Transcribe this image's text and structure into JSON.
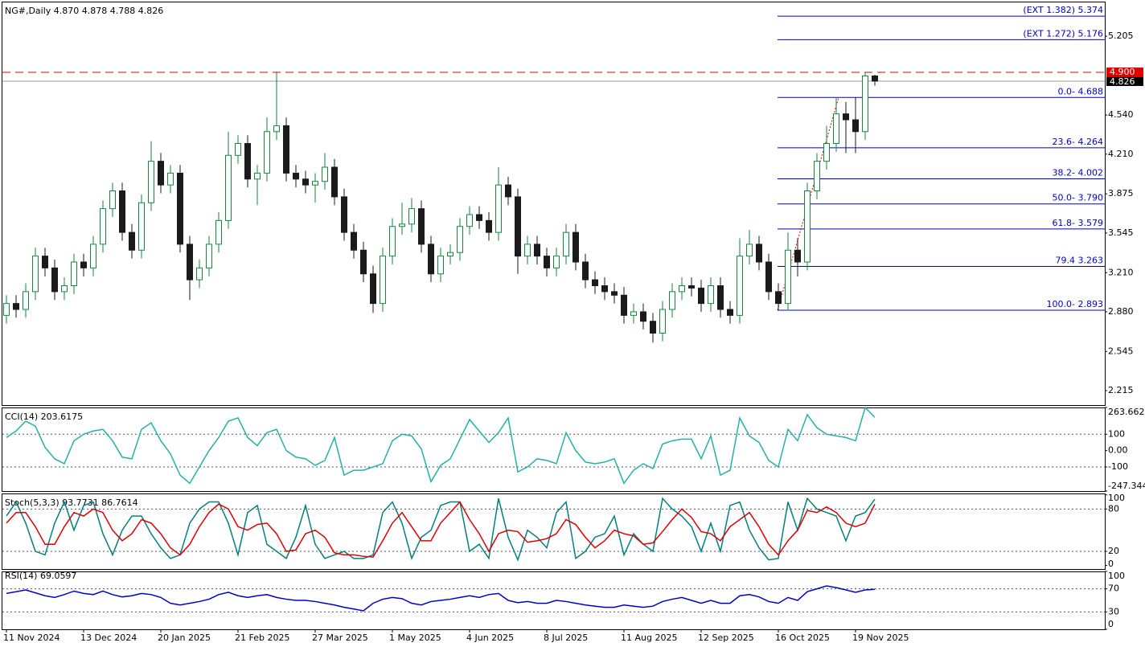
{
  "chart_data": [
    {
      "type": "candlestick",
      "title": "NG#,Daily  4.870 4.878 4.788 4.826",
      "up_color": "#0f8a3c",
      "down_color": "#1a1a1a",
      "categories": [
        "11 Nov 2024",
        null,
        null,
        null,
        null,
        null,
        null,
        null,
        "13 Dec 2024",
        null,
        null,
        null,
        null,
        null,
        null,
        null,
        "20 Jan 2025",
        null,
        null,
        null,
        null,
        null,
        null,
        null,
        "21 Feb 2025",
        null,
        null,
        null,
        null,
        null,
        null,
        null,
        "27 Mar 2025",
        null,
        null,
        null,
        null,
        null,
        null,
        null,
        "1 May 2025",
        null,
        null,
        null,
        null,
        null,
        null,
        null,
        "4 Jun 2025",
        null,
        null,
        null,
        null,
        null,
        null,
        null,
        "8 Jul 2025",
        null,
        null,
        null,
        null,
        null,
        null,
        null,
        "11 Aug 2025",
        null,
        null,
        null,
        null,
        null,
        null,
        null,
        "12 Sep 2025",
        null,
        null,
        null,
        null,
        null,
        null,
        null,
        "16 Oct 2025",
        null,
        null,
        null,
        null,
        null,
        null,
        null,
        "19 Nov 2025",
        null,
        null
      ],
      "open": [
        2.85,
        2.95,
        2.9,
        3.05,
        3.35,
        3.25,
        3.05,
        3.1,
        3.3,
        3.25,
        3.45,
        3.75,
        3.9,
        3.55,
        3.4,
        3.8,
        4.15,
        3.95,
        4.05,
        3.45,
        3.15,
        3.25,
        3.45,
        3.65,
        4.2,
        4.3,
        4.0,
        4.05,
        4.4,
        4.45,
        4.05,
        4.0,
        3.95,
        3.98,
        4.1,
        3.85,
        3.55,
        3.4,
        3.2,
        2.95,
        3.35,
        3.6,
        3.62,
        3.75,
        3.45,
        3.2,
        3.35,
        3.38,
        3.6,
        3.7,
        3.65,
        3.55,
        3.95,
        3.85,
        3.35,
        3.45,
        3.35,
        3.25,
        3.35,
        3.55,
        3.3,
        3.15,
        3.1,
        3.05,
        3.02,
        2.85,
        2.88,
        2.8,
        2.7,
        2.9,
        3.05,
        3.1,
        3.08,
        2.95,
        3.1,
        2.9,
        2.85,
        3.35,
        3.45,
        3.3,
        3.05,
        2.95,
        3.4,
        3.3,
        3.9,
        4.15,
        4.3,
        4.55,
        4.5,
        4.4,
        4.87
      ],
      "high": [
        3.02,
        3.02,
        3.12,
        3.42,
        3.42,
        3.32,
        3.17,
        3.37,
        3.37,
        3.52,
        3.82,
        3.97,
        3.97,
        3.62,
        3.87,
        4.32,
        4.22,
        4.12,
        4.12,
        3.52,
        3.32,
        3.52,
        3.72,
        4.4,
        4.37,
        4.37,
        4.12,
        4.52,
        4.9,
        4.52,
        4.12,
        4.07,
        4.05,
        4.22,
        4.17,
        3.92,
        3.62,
        3.47,
        3.27,
        3.42,
        3.67,
        3.8,
        3.84,
        3.82,
        3.52,
        3.42,
        3.45,
        3.67,
        3.77,
        3.77,
        3.72,
        4.1,
        4.02,
        3.92,
        3.52,
        3.52,
        3.42,
        3.42,
        3.62,
        3.62,
        3.37,
        3.22,
        3.17,
        3.12,
        3.09,
        2.95,
        2.95,
        2.87,
        2.97,
        3.12,
        3.17,
        3.17,
        3.15,
        3.17,
        3.17,
        2.97,
        3.5,
        3.57,
        3.52,
        3.37,
        3.12,
        3.55,
        3.5,
        3.97,
        4.22,
        4.45,
        4.69,
        4.65,
        4.69,
        4.9,
        4.878
      ],
      "low": [
        2.78,
        2.83,
        2.83,
        2.98,
        3.18,
        2.98,
        2.98,
        3.03,
        3.18,
        3.18,
        3.38,
        3.68,
        3.48,
        3.33,
        3.33,
        3.73,
        3.88,
        3.88,
        3.38,
        2.98,
        3.08,
        3.18,
        3.38,
        3.58,
        4.13,
        3.93,
        3.78,
        3.98,
        4.33,
        3.98,
        3.93,
        3.88,
        3.8,
        3.91,
        3.78,
        3.48,
        3.33,
        3.13,
        2.87,
        2.88,
        3.28,
        3.53,
        3.55,
        3.38,
        3.13,
        3.13,
        3.28,
        3.31,
        3.53,
        3.58,
        3.48,
        3.48,
        3.78,
        3.2,
        3.28,
        3.28,
        3.18,
        3.18,
        3.28,
        3.23,
        3.08,
        3.03,
        2.98,
        2.95,
        2.78,
        2.78,
        2.73,
        2.62,
        2.63,
        2.83,
        2.98,
        3.01,
        2.88,
        2.88,
        2.83,
        2.78,
        2.78,
        3.28,
        3.23,
        2.98,
        2.89,
        2.89,
        3.18,
        3.23,
        3.83,
        4.08,
        4.23,
        4.22,
        4.22,
        4.33,
        4.788
      ],
      "close": [
        2.95,
        2.9,
        3.05,
        3.35,
        3.25,
        3.05,
        3.1,
        3.3,
        3.25,
        3.45,
        3.75,
        3.9,
        3.55,
        3.4,
        3.8,
        4.15,
        3.95,
        4.05,
        3.45,
        3.15,
        3.25,
        3.45,
        3.65,
        4.2,
        4.3,
        4.0,
        4.05,
        4.4,
        4.45,
        4.05,
        4.0,
        3.95,
        3.98,
        4.1,
        3.85,
        3.55,
        3.4,
        3.2,
        2.95,
        3.35,
        3.6,
        3.62,
        3.75,
        3.45,
        3.2,
        3.35,
        3.38,
        3.6,
        3.7,
        3.65,
        3.55,
        3.95,
        3.85,
        3.35,
        3.45,
        3.35,
        3.25,
        3.35,
        3.55,
        3.3,
        3.15,
        3.1,
        3.05,
        3.02,
        2.85,
        2.88,
        2.8,
        2.7,
        2.9,
        3.05,
        3.1,
        3.08,
        2.95,
        3.1,
        2.9,
        2.85,
        3.35,
        3.45,
        3.3,
        3.05,
        2.95,
        3.4,
        3.3,
        3.9,
        4.15,
        4.3,
        4.55,
        4.5,
        4.4,
        4.87,
        4.826
      ],
      "ylim": [
        2.093,
        5.497
      ],
      "yticks": [
        {
          "value": 2.215,
          "label": "2.215"
        },
        2.545,
        {
          "value": 2.88,
          "label": "2.880"
        },
        {
          "value": 3.21,
          "label": "3.210"
        },
        3.545,
        3.875,
        {
          "value": 4.21,
          "label": "4.210"
        },
        {
          "value": 4.54,
          "label": "4.540"
        },
        5.205
      ],
      "resistance": {
        "value": 4.9,
        "label": "4.900",
        "color": "#e00000"
      },
      "last_price": {
        "value": 4.826,
        "label": "4.826"
      },
      "fib_color": "#0000c8",
      "fib_levels": [
        {
          "value": 5.374,
          "label": "(EXT 1.382)  5.374"
        },
        {
          "value": 5.176,
          "label": "(EXT 1.272)  5.176"
        },
        {
          "value": 4.688,
          "label": "0.0- 4.688"
        },
        {
          "value": 4.264,
          "label": "23.6- 4.264"
        },
        {
          "value": 4.002,
          "label": "38.2- 4.002"
        },
        {
          "value": 3.79,
          "label": "50.0- 3.790"
        },
        {
          "value": 3.579,
          "label": "61.8- 3.579"
        },
        {
          "value": 3.263,
          "label": "79.4 3.263"
        },
        {
          "value": 2.893,
          "label": "100.0- 2.893"
        }
      ]
    },
    {
      "type": "line",
      "title": "CCI(14) 203.6175",
      "series": [
        {
          "name": "CCI(14)",
          "color": "#20b2aa",
          "values": [
            80,
            120,
            180,
            150,
            20,
            -50,
            -80,
            60,
            100,
            120,
            130,
            60,
            -40,
            -50,
            130,
            170,
            60,
            -20,
            -150,
            -200,
            -100,
            0,
            80,
            180,
            200,
            80,
            30,
            110,
            130,
            0,
            -40,
            -50,
            -90,
            -60,
            80,
            -150,
            -120,
            -120,
            -100,
            -80,
            60,
            100,
            90,
            10,
            -190,
            -90,
            -50,
            70,
            190,
            120,
            50,
            110,
            200,
            -130,
            -100,
            -50,
            -60,
            -80,
            110,
            0,
            -70,
            -80,
            -70,
            -50,
            -200,
            -120,
            -80,
            -110,
            40,
            60,
            70,
            70,
            -50,
            90,
            -150,
            -120,
            200,
            90,
            50,
            -60,
            -100,
            130,
            60,
            220,
            140,
            100,
            90,
            80,
            60,
            263.662,
            203.6175
          ]
        }
      ],
      "ylim": [
        -247.344,
        263.662
      ],
      "yticks": [
        -247.344,
        -100,
        {
          "value": 0,
          "label": "0.00"
        },
        100,
        263.662
      ],
      "levels": [
        100,
        -100
      ]
    },
    {
      "type": "line",
      "title": "Stoch(5,3,3) 93.7731 86.7614",
      "series": [
        {
          "name": "Main",
          "color": "#008080",
          "values": [
            70,
            90,
            60,
            20,
            15,
            60,
            90,
            50,
            85,
            90,
            45,
            15,
            50,
            70,
            70,
            45,
            25,
            10,
            15,
            60,
            80,
            90,
            90,
            60,
            15,
            75,
            85,
            30,
            20,
            10,
            40,
            85,
            30,
            10,
            15,
            20,
            10,
            10,
            15,
            75,
            90,
            60,
            10,
            40,
            50,
            85,
            90,
            90,
            20,
            30,
            10,
            95,
            40,
            8,
            50,
            40,
            25,
            75,
            90,
            10,
            20,
            40,
            45,
            70,
            15,
            45,
            30,
            20,
            95,
            80,
            70,
            55,
            20,
            60,
            20,
            85,
            90,
            50,
            25,
            8,
            10,
            90,
            50,
            95,
            80,
            75,
            70,
            35,
            70,
            75,
            93.7731
          ]
        },
        {
          "name": "Signal",
          "color": "#e00000",
          "values": [
            60,
            75,
            75,
            55,
            30,
            30,
            55,
            75,
            70,
            80,
            75,
            50,
            35,
            45,
            65,
            60,
            45,
            25,
            15,
            30,
            55,
            75,
            87,
            80,
            55,
            50,
            58,
            60,
            45,
            20,
            22,
            45,
            50,
            40,
            18,
            15,
            15,
            13,
            12,
            35,
            60,
            75,
            55,
            35,
            35,
            60,
            75,
            90,
            65,
            45,
            20,
            45,
            50,
            48,
            33,
            35,
            38,
            45,
            65,
            58,
            40,
            25,
            35,
            50,
            45,
            42,
            30,
            32,
            48,
            65,
            80,
            68,
            48,
            45,
            35,
            55,
            65,
            75,
            55,
            30,
            15,
            35,
            50,
            78,
            75,
            83,
            75,
            60,
            55,
            60,
            86.7614
          ]
        }
      ],
      "ylim": [
        -5,
        102
      ],
      "yticks": [
        0,
        20,
        80,
        100
      ],
      "levels": [
        80,
        20
      ]
    },
    {
      "type": "line",
      "title": "RSI(14) 69.0597",
      "series": [
        {
          "name": "RSI(14)",
          "color": "#0000cd",
          "values": [
            62,
            65,
            68,
            63,
            58,
            55,
            60,
            66,
            62,
            60,
            66,
            60,
            56,
            58,
            62,
            60,
            55,
            45,
            42,
            45,
            48,
            52,
            60,
            64,
            58,
            55,
            58,
            60,
            55,
            52,
            50,
            50,
            48,
            45,
            42,
            38,
            35,
            32,
            45,
            52,
            55,
            53,
            45,
            42,
            48,
            50,
            52,
            55,
            58,
            55,
            60,
            62,
            50,
            46,
            48,
            45,
            45,
            50,
            48,
            45,
            42,
            40,
            38,
            38,
            42,
            40,
            38,
            40,
            48,
            52,
            55,
            50,
            45,
            50,
            45,
            45,
            58,
            60,
            56,
            48,
            45,
            55,
            50,
            65,
            70,
            75,
            72,
            68,
            64,
            68,
            69.0597
          ]
        }
      ],
      "ylim": [
        0,
        100
      ],
      "yticks": [
        0,
        30,
        70,
        100
      ],
      "levels": [
        70,
        30
      ]
    }
  ]
}
